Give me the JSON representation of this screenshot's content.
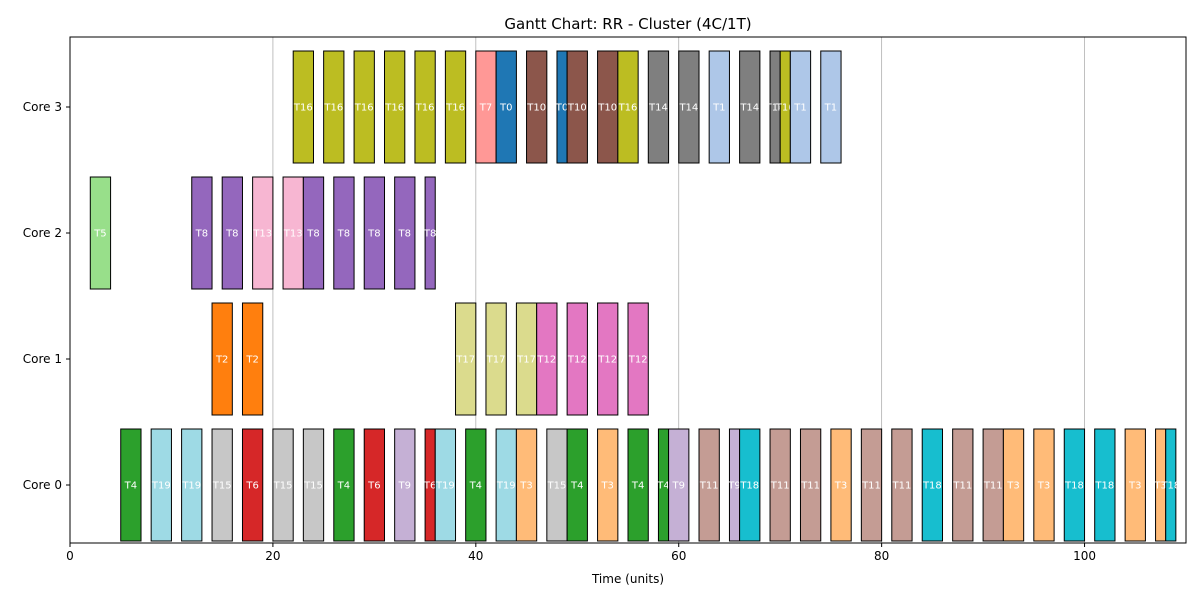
{
  "chart_data": {
    "type": "gantt",
    "title": "Gantt Chart: RR - Cluster (4C/1T)",
    "xlabel": "Time (units)",
    "ylabel": "",
    "xlim": [
      0,
      110
    ],
    "xticks": [
      0,
      20,
      40,
      60,
      80,
      100
    ],
    "grid": "vertical",
    "rows": [
      "Core 0",
      "Core 1",
      "Core 2",
      "Core 3"
    ],
    "colors": {
      "T0": "#1f77b4",
      "T1": "#aec7e8",
      "T2": "#ff7f0e",
      "T3": "#ffbb78",
      "T4": "#2ca02c",
      "T5": "#98df8a",
      "T6": "#d62728",
      "T7": "#ff9896",
      "T8": "#9467bd",
      "T9": "#c5b0d5",
      "T10": "#8c564b",
      "T11": "#c49c94",
      "T12": "#e377c2",
      "T13": "#f7b6d2",
      "T14": "#7f7f7f",
      "T15": "#c7c7c7",
      "T16": "#bcbd22",
      "T17": "#dbdb8d",
      "T18": "#17becf",
      "T19": "#9edae5"
    },
    "segments": [
      {
        "core": 0,
        "task": "T4",
        "start": 5,
        "end": 7
      },
      {
        "core": 0,
        "task": "T19",
        "start": 8,
        "end": 10
      },
      {
        "core": 0,
        "task": "T19",
        "start": 11,
        "end": 13
      },
      {
        "core": 0,
        "task": "T15",
        "start": 14,
        "end": 16
      },
      {
        "core": 0,
        "task": "T6",
        "start": 17,
        "end": 19
      },
      {
        "core": 0,
        "task": "T15",
        "start": 20,
        "end": 22
      },
      {
        "core": 0,
        "task": "T15",
        "start": 23,
        "end": 25
      },
      {
        "core": 0,
        "task": "T4",
        "start": 26,
        "end": 28
      },
      {
        "core": 0,
        "task": "T6",
        "start": 29,
        "end": 31
      },
      {
        "core": 0,
        "task": "T9",
        "start": 32,
        "end": 34
      },
      {
        "core": 0,
        "task": "T6",
        "start": 35,
        "end": 36
      },
      {
        "core": 0,
        "task": "T19",
        "start": 36,
        "end": 38
      },
      {
        "core": 0,
        "task": "T4",
        "start": 39,
        "end": 41
      },
      {
        "core": 0,
        "task": "T19",
        "start": 42,
        "end": 44
      },
      {
        "core": 0,
        "task": "T3",
        "start": 44,
        "end": 46
      },
      {
        "core": 0,
        "task": "T15",
        "start": 47,
        "end": 49
      },
      {
        "core": 0,
        "task": "T4",
        "start": 49,
        "end": 51
      },
      {
        "core": 0,
        "task": "T3",
        "start": 52,
        "end": 54
      },
      {
        "core": 0,
        "task": "T4",
        "start": 55,
        "end": 57
      },
      {
        "core": 0,
        "task": "T4",
        "start": 58,
        "end": 59
      },
      {
        "core": 0,
        "task": "T9",
        "start": 59,
        "end": 61
      },
      {
        "core": 0,
        "task": "T11",
        "start": 62,
        "end": 64
      },
      {
        "core": 0,
        "task": "T9",
        "start": 65,
        "end": 66
      },
      {
        "core": 0,
        "task": "T18",
        "start": 66,
        "end": 68
      },
      {
        "core": 0,
        "task": "T11",
        "start": 69,
        "end": 71
      },
      {
        "core": 0,
        "task": "T11",
        "start": 72,
        "end": 74
      },
      {
        "core": 0,
        "task": "T3",
        "start": 75,
        "end": 77
      },
      {
        "core": 0,
        "task": "T11",
        "start": 78,
        "end": 80
      },
      {
        "core": 0,
        "task": "T11",
        "start": 81,
        "end": 83
      },
      {
        "core": 0,
        "task": "T18",
        "start": 84,
        "end": 86
      },
      {
        "core": 0,
        "task": "T11",
        "start": 87,
        "end": 89
      },
      {
        "core": 0,
        "task": "T11",
        "start": 90,
        "end": 92
      },
      {
        "core": 0,
        "task": "T3",
        "start": 92,
        "end": 94
      },
      {
        "core": 0,
        "task": "T3",
        "start": 95,
        "end": 97
      },
      {
        "core": 0,
        "task": "T18",
        "start": 98,
        "end": 100
      },
      {
        "core": 0,
        "task": "T18",
        "start": 101,
        "end": 103
      },
      {
        "core": 0,
        "task": "T3",
        "start": 104,
        "end": 106
      },
      {
        "core": 0,
        "task": "T3",
        "start": 107,
        "end": 108
      },
      {
        "core": 0,
        "task": "T18",
        "start": 108,
        "end": 109
      },
      {
        "core": 1,
        "task": "T2",
        "start": 14,
        "end": 16
      },
      {
        "core": 1,
        "task": "T2",
        "start": 17,
        "end": 19
      },
      {
        "core": 1,
        "task": "T17",
        "start": 38,
        "end": 40
      },
      {
        "core": 1,
        "task": "T17",
        "start": 41,
        "end": 43
      },
      {
        "core": 1,
        "task": "T17",
        "start": 44,
        "end": 46
      },
      {
        "core": 1,
        "task": "T12",
        "start": 46,
        "end": 48
      },
      {
        "core": 1,
        "task": "T12",
        "start": 49,
        "end": 51
      },
      {
        "core": 1,
        "task": "T12",
        "start": 52,
        "end": 54
      },
      {
        "core": 1,
        "task": "T12",
        "start": 55,
        "end": 57
      },
      {
        "core": 2,
        "task": "T5",
        "start": 2,
        "end": 4
      },
      {
        "core": 2,
        "task": "T8",
        "start": 12,
        "end": 14
      },
      {
        "core": 2,
        "task": "T8",
        "start": 15,
        "end": 17
      },
      {
        "core": 2,
        "task": "T13",
        "start": 18,
        "end": 20
      },
      {
        "core": 2,
        "task": "T13",
        "start": 21,
        "end": 23
      },
      {
        "core": 2,
        "task": "T8",
        "start": 23,
        "end": 25
      },
      {
        "core": 2,
        "task": "T8",
        "start": 26,
        "end": 28
      },
      {
        "core": 2,
        "task": "T8",
        "start": 29,
        "end": 31
      },
      {
        "core": 2,
        "task": "T8",
        "start": 32,
        "end": 34
      },
      {
        "core": 2,
        "task": "T8",
        "start": 35,
        "end": 36
      },
      {
        "core": 3,
        "task": "T16",
        "start": 22,
        "end": 24
      },
      {
        "core": 3,
        "task": "T16",
        "start": 25,
        "end": 27
      },
      {
        "core": 3,
        "task": "T16",
        "start": 28,
        "end": 30
      },
      {
        "core": 3,
        "task": "T16",
        "start": 31,
        "end": 33
      },
      {
        "core": 3,
        "task": "T16",
        "start": 34,
        "end": 36
      },
      {
        "core": 3,
        "task": "T16",
        "start": 37,
        "end": 39
      },
      {
        "core": 3,
        "task": "T7",
        "start": 40,
        "end": 42
      },
      {
        "core": 3,
        "task": "T0",
        "start": 42,
        "end": 44
      },
      {
        "core": 3,
        "task": "T10",
        "start": 45,
        "end": 47
      },
      {
        "core": 3,
        "task": "T0",
        "start": 48,
        "end": 49
      },
      {
        "core": 3,
        "task": "T10",
        "start": 49,
        "end": 51
      },
      {
        "core": 3,
        "task": "T10",
        "start": 52,
        "end": 54
      },
      {
        "core": 3,
        "task": "T16",
        "start": 54,
        "end": 56
      },
      {
        "core": 3,
        "task": "T14",
        "start": 57,
        "end": 59
      },
      {
        "core": 3,
        "task": "T14",
        "start": 60,
        "end": 62
      },
      {
        "core": 3,
        "task": "T1",
        "start": 63,
        "end": 65
      },
      {
        "core": 3,
        "task": "T14",
        "start": 66,
        "end": 68
      },
      {
        "core": 3,
        "task": "T14",
        "start": 69,
        "end": 70
      },
      {
        "core": 3,
        "task": "T16",
        "start": 70,
        "end": 71
      },
      {
        "core": 3,
        "task": "T1",
        "start": 71,
        "end": 73
      },
      {
        "core": 3,
        "task": "T1",
        "start": 74,
        "end": 76
      }
    ]
  }
}
